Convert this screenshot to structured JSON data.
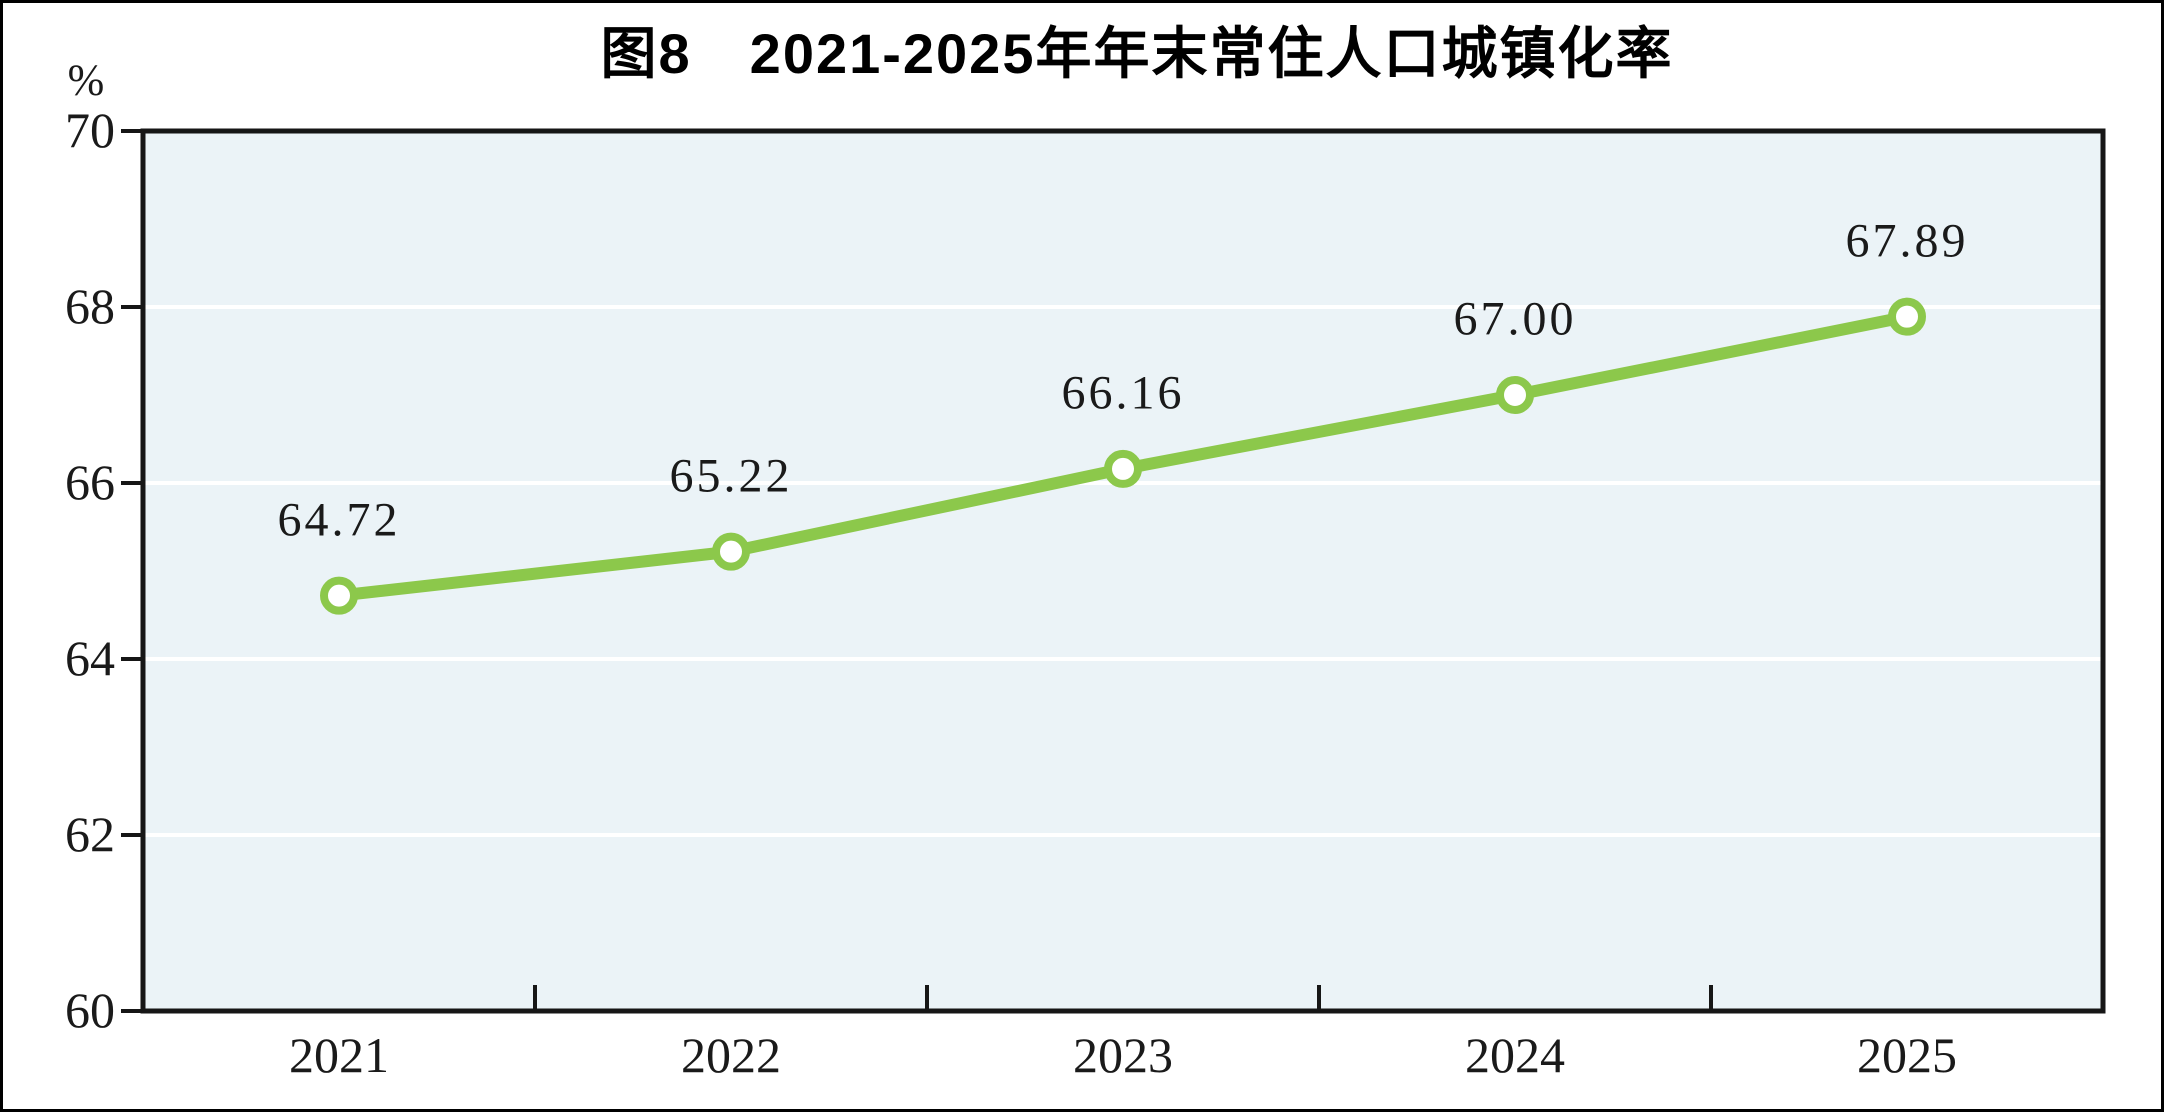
{
  "figure": {
    "title": "图8　2021-2025年年末常住人口城镇化率",
    "unit_label": "%"
  },
  "chart_data": {
    "type": "line",
    "title": "图8　2021-2025年年末常住人口城镇化率",
    "unit": "%",
    "categories": [
      "2021",
      "2022",
      "2023",
      "2024",
      "2025"
    ],
    "series": [
      {
        "name": "年末常住人口城镇化率",
        "values": [
          64.72,
          65.22,
          66.16,
          67.0,
          67.89
        ]
      }
    ],
    "value_labels": [
      "64.72",
      "65.22",
      "66.16",
      "67.00",
      "67.89"
    ],
    "xlabel": "",
    "ylabel": "%",
    "ylim": [
      60,
      70
    ],
    "yticks": [
      60,
      62,
      64,
      66,
      68,
      70
    ],
    "grid": true,
    "legend_position": "none",
    "colors": {
      "line": "#8cc84b",
      "marker_fill": "#ffffff",
      "plot_background": "#ebf3f7",
      "gridline": "#ffffff",
      "axis": "#161616",
      "text": "#1a1a1a"
    }
  }
}
